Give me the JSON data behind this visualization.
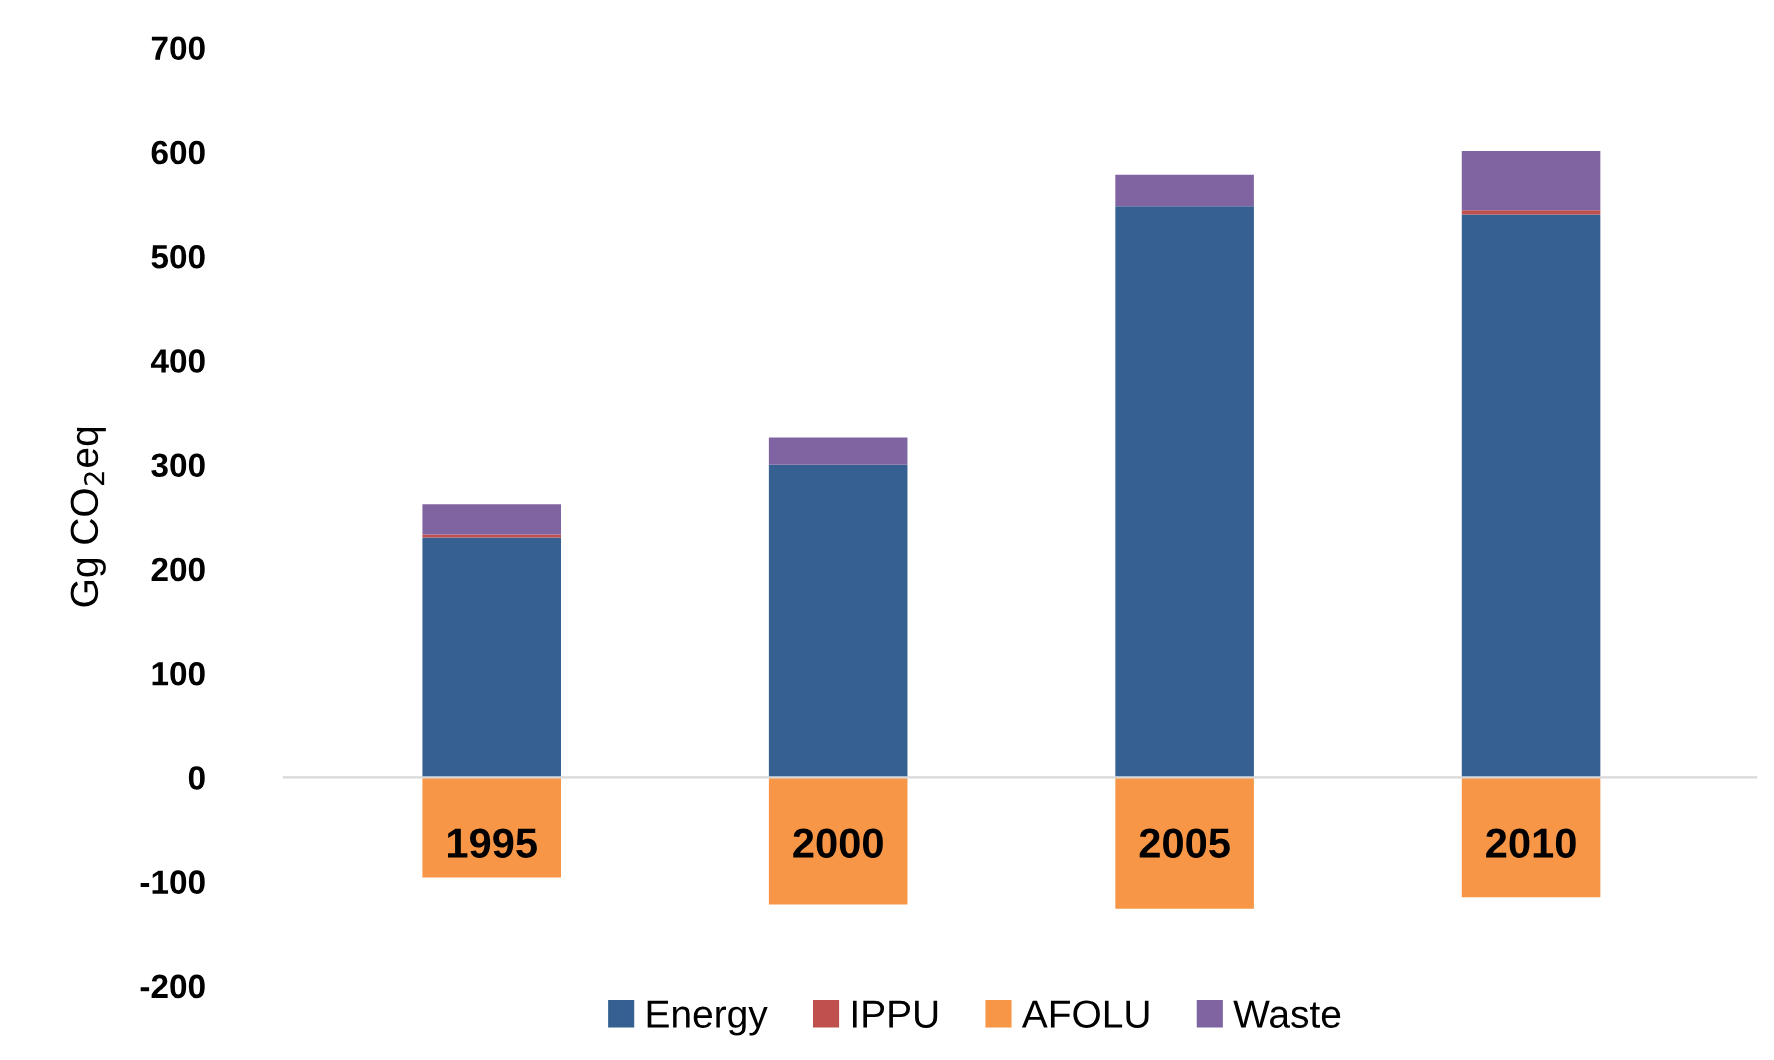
{
  "chart_data": {
    "type": "bar",
    "stacked": true,
    "ylabel": "Gg CO$_{2}$eq",
    "categories": [
      "1995",
      "2000",
      "2005",
      "2010"
    ],
    "series": [
      {
        "name": "Energy",
        "color": "#366092",
        "values": [
          230,
          300,
          548,
          540
        ]
      },
      {
        "name": "IPPU",
        "color": "#c0504d",
        "values": [
          3,
          0,
          0,
          4
        ]
      },
      {
        "name": "AFOLU",
        "color": "#f79646",
        "values": [
          -96,
          -122,
          -126,
          -115
        ]
      },
      {
        "name": "Waste",
        "color": "#8064a2",
        "values": [
          29,
          26,
          30,
          57
        ]
      }
    ],
    "ylim": [
      -200,
      700
    ],
    "yticks": [
      -200,
      -100,
      0,
      100,
      200,
      300,
      400,
      500,
      600,
      700
    ],
    "grid": false,
    "legend": "bottom"
  }
}
